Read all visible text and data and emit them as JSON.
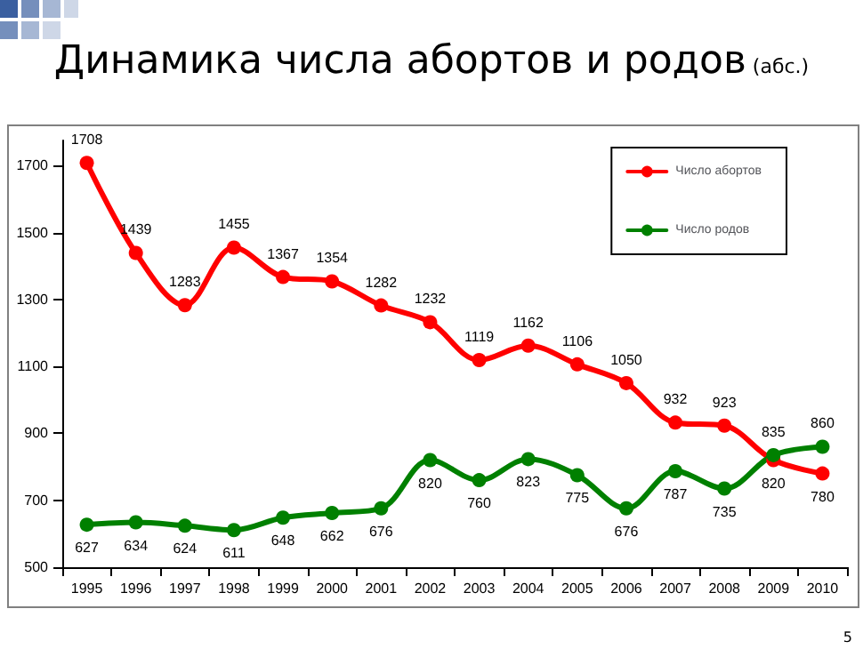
{
  "chart_data": {
    "type": "line",
    "title": "Динамика числа абортов и родов",
    "subtitle": "(абс.)",
    "categories": [
      "1995",
      "1996",
      "1997",
      "1998",
      "1999",
      "2000",
      "2001",
      "2002",
      "2003",
      "2004",
      "2005",
      "2006",
      "2007",
      "2008",
      "2009",
      "2010"
    ],
    "series": [
      {
        "name": "Число абортов",
        "color": "#ff0000",
        "values": [
          1708,
          1439,
          1283,
          1455,
          1367,
          1354,
          1282,
          1232,
          1119,
          1162,
          1106,
          1050,
          932,
          923,
          820,
          780
        ]
      },
      {
        "name": "Число родов",
        "color": "#008000",
        "values": [
          627,
          634,
          624,
          611,
          648,
          662,
          676,
          820,
          760,
          823,
          775,
          676,
          787,
          735,
          835,
          860
        ]
      }
    ],
    "ylim": [
      500,
      1775
    ],
    "yticks": [
      500,
      700,
      900,
      1100,
      1300,
      1500,
      1700
    ],
    "grid": false,
    "legend": "top right",
    "marker": "circle",
    "line_style": "solid",
    "data_labels": true,
    "annotations": [
      "5"
    ]
  }
}
